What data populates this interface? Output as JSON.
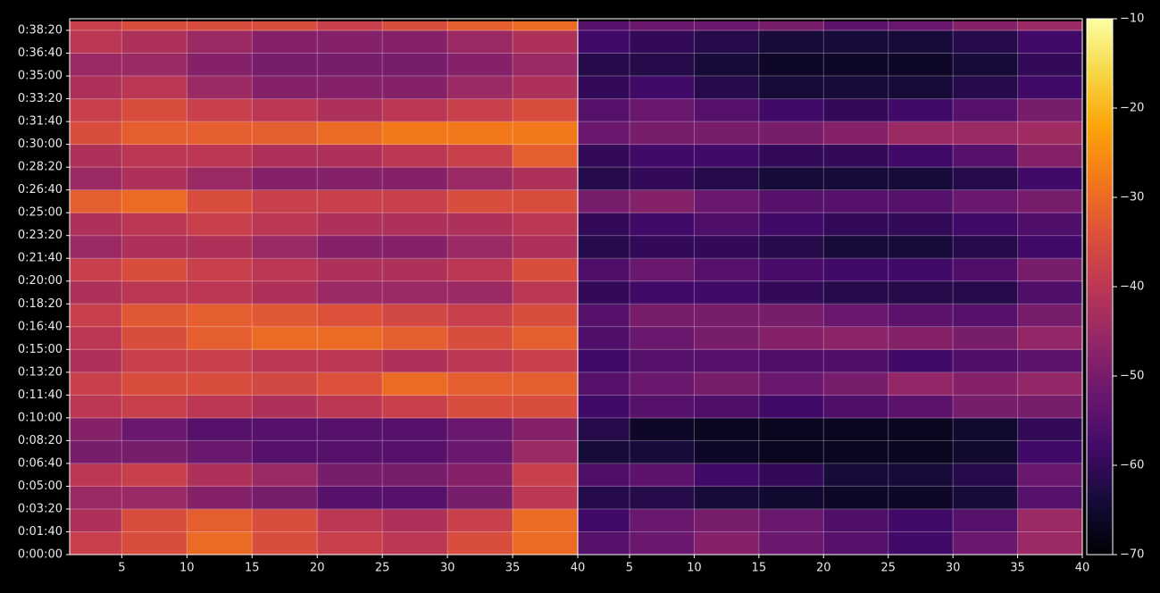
{
  "chart_data": [
    {
      "type": "heatmap",
      "cmap": "inferno",
      "xbins": [
        1,
        5,
        10,
        15,
        20,
        25,
        30,
        35,
        40
      ],
      "ybins": [
        0,
        100,
        200,
        300,
        400,
        500,
        600,
        700,
        800,
        900,
        1000,
        1100,
        1200,
        1300,
        1400,
        1500,
        1600,
        1700,
        1800,
        1900,
        2000,
        2100,
        2200,
        2300,
        2340
      ],
      "xlim": [
        1,
        40
      ],
      "ylim": [
        0,
        2351
      ],
      "xticks": [
        5,
        10,
        15,
        20,
        25,
        30,
        35,
        40
      ],
      "yticks": [
        {
          "value": 0,
          "label": "0:00:00"
        },
        {
          "value": 100,
          "label": "0:01:40"
        },
        {
          "value": 200,
          "label": "0:03:20"
        },
        {
          "value": 300,
          "label": "0:05:00"
        },
        {
          "value": 400,
          "label": "0:06:40"
        },
        {
          "value": 500,
          "label": "0:08:20"
        },
        {
          "value": 600,
          "label": "0:10:00"
        },
        {
          "value": 700,
          "label": "0:11:40"
        },
        {
          "value": 800,
          "label": "0:13:20"
        },
        {
          "value": 900,
          "label": "0:15:00"
        },
        {
          "value": 1000,
          "label": "0:16:40"
        },
        {
          "value": 1100,
          "label": "0:18:20"
        },
        {
          "value": 1200,
          "label": "0:20:00"
        },
        {
          "value": 1300,
          "label": "0:21:40"
        },
        {
          "value": 1400,
          "label": "0:23:20"
        },
        {
          "value": 1500,
          "label": "0:25:00"
        },
        {
          "value": 1600,
          "label": "0:26:40"
        },
        {
          "value": 1700,
          "label": "0:28:20"
        },
        {
          "value": 1800,
          "label": "0:30:00"
        },
        {
          "value": 1900,
          "label": "0:31:40"
        },
        {
          "value": 2000,
          "label": "0:33:20"
        },
        {
          "value": 2100,
          "label": "0:35:00"
        },
        {
          "value": 2200,
          "label": "0:36:40"
        },
        {
          "value": 2300,
          "label": "0:38:20"
        }
      ],
      "grid": true,
      "values": [
        [
          -38,
          -35,
          -30,
          -35,
          -38,
          -40,
          -35,
          -30
        ],
        [
          -42,
          -35,
          -32,
          -35,
          -40,
          -42,
          -38,
          -30
        ],
        [
          -45,
          -45,
          -48,
          -50,
          -55,
          -55,
          -50,
          -40
        ],
        [
          -40,
          -38,
          -42,
          -45,
          -50,
          -50,
          -48,
          -38
        ],
        [
          -50,
          -50,
          -52,
          -55,
          -55,
          -55,
          -52,
          -45
        ],
        [
          -48,
          -52,
          -55,
          -55,
          -55,
          -55,
          -52,
          -48
        ],
        [
          -40,
          -38,
          -40,
          -42,
          -40,
          -38,
          -35,
          -35
        ],
        [
          -38,
          -35,
          -35,
          -36,
          -34,
          -30,
          -32,
          -32
        ],
        [
          -42,
          -38,
          -38,
          -40,
          -40,
          -42,
          -40,
          -38
        ],
        [
          -40,
          -35,
          -32,
          -30,
          -30,
          -32,
          -35,
          -32
        ],
        [
          -38,
          -33,
          -32,
          -33,
          -34,
          -36,
          -38,
          -35
        ],
        [
          -42,
          -40,
          -40,
          -42,
          -45,
          -45,
          -45,
          -40
        ],
        [
          -38,
          -35,
          -38,
          -40,
          -42,
          -42,
          -40,
          -35
        ],
        [
          -45,
          -42,
          -42,
          -45,
          -48,
          -48,
          -45,
          -42
        ],
        [
          -42,
          -40,
          -38,
          -40,
          -42,
          -42,
          -42,
          -40
        ],
        [
          -32,
          -30,
          -35,
          -38,
          -38,
          -38,
          -35,
          -35
        ],
        [
          -45,
          -42,
          -45,
          -48,
          -48,
          -48,
          -45,
          -42
        ],
        [
          -42,
          -40,
          -40,
          -42,
          -42,
          -40,
          -38,
          -32
        ],
        [
          -35,
          -32,
          -32,
          -32,
          -30,
          -28,
          -28,
          -28
        ],
        [
          -38,
          -35,
          -38,
          -40,
          -42,
          -40,
          -38,
          -35
        ],
        [
          -42,
          -40,
          -45,
          -48,
          -48,
          -48,
          -45,
          -42
        ],
        [
          -45,
          -45,
          -48,
          -50,
          -50,
          -50,
          -48,
          -45
        ],
        [
          -40,
          -42,
          -45,
          -48,
          -48,
          -48,
          -45,
          -42
        ],
        [
          -38,
          -35,
          -35,
          -35,
          -38,
          -35,
          -32,
          -30
        ]
      ]
    },
    {
      "type": "heatmap",
      "cmap": "inferno",
      "xbins": [
        1,
        5,
        10,
        15,
        20,
        25,
        30,
        35,
        40
      ],
      "ybins": [
        0,
        100,
        200,
        300,
        400,
        500,
        600,
        700,
        800,
        900,
        1000,
        1100,
        1200,
        1300,
        1400,
        1500,
        1600,
        1700,
        1800,
        1900,
        2000,
        2100,
        2200,
        2300,
        2340
      ],
      "xlim": [
        1,
        40
      ],
      "ylim": [
        0,
        2351
      ],
      "xticks": [
        5,
        10,
        15,
        20,
        25,
        30,
        35,
        40
      ],
      "grid": true,
      "zlim": [
        -70,
        -10
      ],
      "zticks": [
        {
          "value": -70,
          "label": "−70"
        },
        {
          "value": -60,
          "label": "−60"
        },
        {
          "value": -50,
          "label": "−50"
        },
        {
          "value": -40,
          "label": "−40"
        },
        {
          "value": -30,
          "label": "−30"
        },
        {
          "value": -20,
          "label": "−20"
        },
        {
          "value": -10,
          "label": "−10"
        }
      ],
      "values": [
        [
          -55,
          -52,
          -48,
          -52,
          -55,
          -58,
          -52,
          -45
        ],
        [
          -58,
          -52,
          -50,
          -52,
          -56,
          -58,
          -55,
          -45
        ],
        [
          -62,
          -62,
          -64,
          -65,
          -66,
          -66,
          -64,
          -55
        ],
        [
          -56,
          -54,
          -58,
          -60,
          -64,
          -64,
          -62,
          -52
        ],
        [
          -64,
          -64,
          -66,
          -67,
          -67,
          -67,
          -65,
          -58
        ],
        [
          -62,
          -66,
          -67,
          -67,
          -67,
          -67,
          -65,
          -60
        ],
        [
          -58,
          -55,
          -56,
          -58,
          -56,
          -54,
          -50,
          -50
        ],
        [
          -55,
          -52,
          -50,
          -52,
          -50,
          -46,
          -48,
          -46
        ],
        [
          -58,
          -55,
          -55,
          -56,
          -56,
          -58,
          -56,
          -54
        ],
        [
          -56,
          -52,
          -50,
          -48,
          -47,
          -48,
          -50,
          -46
        ],
        [
          -55,
          -50,
          -50,
          -50,
          -52,
          -54,
          -55,
          -50
        ],
        [
          -60,
          -58,
          -58,
          -60,
          -62,
          -62,
          -62,
          -56
        ],
        [
          -56,
          -52,
          -55,
          -57,
          -58,
          -58,
          -56,
          -50
        ],
        [
          -62,
          -60,
          -60,
          -62,
          -64,
          -64,
          -62,
          -58
        ],
        [
          -60,
          -58,
          -56,
          -58,
          -60,
          -60,
          -58,
          -56
        ],
        [
          -50,
          -48,
          -52,
          -55,
          -55,
          -55,
          -52,
          -50
        ],
        [
          -62,
          -60,
          -62,
          -64,
          -64,
          -64,
          -62,
          -58
        ],
        [
          -60,
          -58,
          -58,
          -60,
          -60,
          -58,
          -55,
          -48
        ],
        [
          -52,
          -50,
          -50,
          -50,
          -48,
          -45,
          -45,
          -44
        ],
        [
          -55,
          -52,
          -55,
          -58,
          -60,
          -58,
          -55,
          -50
        ],
        [
          -60,
          -58,
          -62,
          -64,
          -64,
          -64,
          -62,
          -58
        ],
        [
          -62,
          -62,
          -64,
          -66,
          -66,
          -66,
          -64,
          -60
        ],
        [
          -58,
          -60,
          -62,
          -64,
          -64,
          -64,
          -62,
          -58
        ],
        [
          -55,
          -52,
          -52,
          -50,
          -54,
          -52,
          -48,
          -45
        ]
      ]
    }
  ]
}
